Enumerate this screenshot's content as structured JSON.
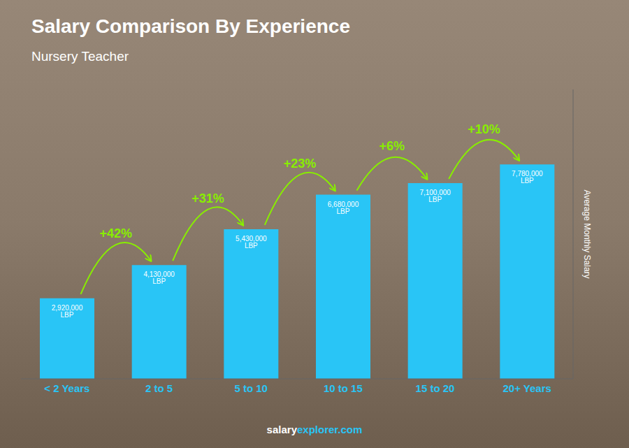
{
  "chart_data": {
    "type": "bar",
    "title": "Salary Comparison By Experience",
    "subtitle": "Nursery Teacher",
    "y_label": "Average Monthly Salary",
    "categories": [
      "< 2 Years",
      "2 to 5",
      "5 to 10",
      "10 to 15",
      "15 to 20",
      "20+ Years"
    ],
    "values": [
      2920000,
      4130000,
      5430000,
      6680000,
      7100000,
      7780000
    ],
    "value_labels": [
      "2,920,000 LBP",
      "4,130,000 LBP",
      "5,430,000 LBP",
      "6,680,000 LBP",
      "7,100,000 LBP",
      "7,780,000 LBP"
    ],
    "data_labels": true,
    "color": "#29c5f6",
    "ylim": [
      0,
      10500000
    ],
    "grid": false,
    "tick_labels": "x",
    "annotations": [
      {
        "text": "+42%",
        "color": "#88ee00"
      },
      {
        "text": "+31%",
        "color": "#88ee00"
      },
      {
        "text": "+23%",
        "color": "#88ee00"
      },
      {
        "text": "+6%",
        "color": "#88ee00"
      },
      {
        "text": "+10%",
        "color": "#88ee00"
      }
    ],
    "footer": [
      "salary",
      "explorer.com"
    ]
  }
}
